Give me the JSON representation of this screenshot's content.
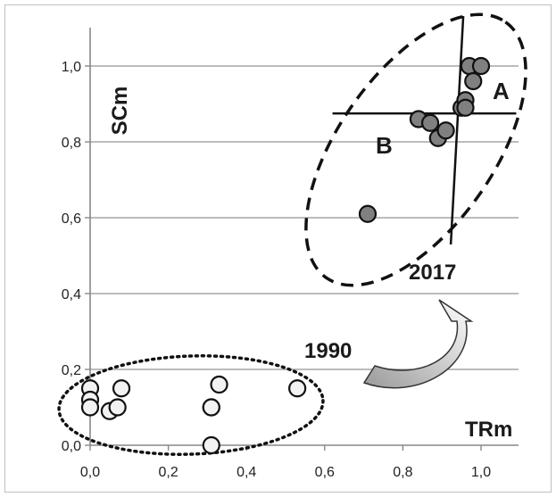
{
  "chart_data": {
    "type": "scatter",
    "xlabel": "TRm",
    "ylabel": "SCm",
    "xlim": [
      0,
      1.0
    ],
    "ylim": [
      0,
      1.0
    ],
    "x_ticks": [
      "0,0",
      "0,2",
      "0,4",
      "0,6",
      "0,8",
      "1,0"
    ],
    "y_ticks": [
      "0,0",
      "0,2",
      "0,4",
      "0,6",
      "0,8",
      "1,0"
    ],
    "grid": "horizontal",
    "series": [
      {
        "name": "1990",
        "color": "#f2f2f2",
        "x": [
          0.0,
          0.0,
          0.0,
          0.05,
          0.07,
          0.08,
          0.31,
          0.31,
          0.31,
          0.33,
          0.53
        ],
        "y": [
          0.15,
          0.12,
          0.1,
          0.09,
          0.1,
          0.15,
          0.1,
          0.1,
          0.0,
          0.16,
          0.15
        ]
      },
      {
        "name": "2017",
        "color": "#808080",
        "x": [
          0.71,
          0.84,
          0.87,
          0.89,
          0.91,
          0.95,
          0.96,
          0.96,
          0.97,
          0.98,
          1.0
        ],
        "y": [
          0.61,
          0.86,
          0.85,
          0.81,
          0.83,
          0.89,
          0.91,
          0.89,
          1.0,
          0.96,
          1.0
        ]
      }
    ],
    "annotations": {
      "label_1990": "1990",
      "label_2017": "2017",
      "quadrant_a": "A",
      "quadrant_b": "B",
      "crosshair": {
        "x": 0.95,
        "y": 0.875
      }
    }
  }
}
